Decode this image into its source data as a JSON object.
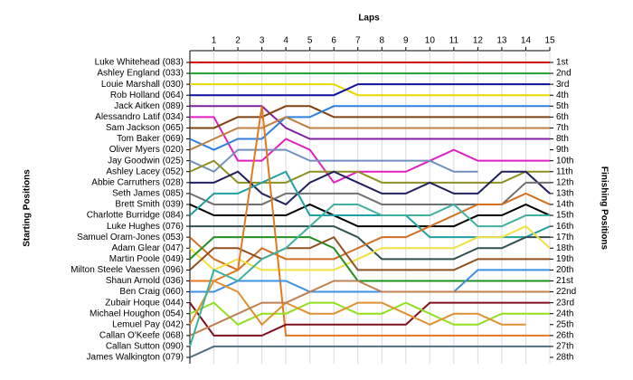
{
  "chart_data": {
    "type": "line",
    "x_title": "Laps",
    "y_title": "Starting Positions",
    "y2_title": "Finishing Positions",
    "xlim": [
      0,
      15
    ],
    "xticks": [
      1,
      2,
      3,
      4,
      5,
      6,
      7,
      8,
      9,
      10,
      11,
      12,
      13,
      14,
      15
    ],
    "ylim": [
      1,
      28
    ],
    "y_reversed": true,
    "yticks": [
      1,
      2,
      3,
      4,
      5,
      6,
      7,
      8,
      9,
      10,
      11,
      12,
      13,
      14,
      15,
      16,
      17,
      18,
      19,
      20,
      21,
      22,
      23,
      24,
      25,
      26,
      27,
      28
    ],
    "grid": true,
    "finishing_labels": [
      "1st",
      "2nd",
      "3rd",
      "4th",
      "5th",
      "6th",
      "7th",
      "8th",
      "9th",
      "10th",
      "11th",
      "12th",
      "13th",
      "14th",
      "15th",
      "16th",
      "17th",
      "18th",
      "19th",
      "20th",
      "21st",
      "22nd",
      "23rd",
      "24th",
      "25th",
      "26th",
      "27th",
      "28th"
    ],
    "series": [
      {
        "name": "Luke Whitehead (083)",
        "color": "#d00000",
        "values": [
          1,
          1,
          1,
          1,
          1,
          1,
          1,
          1,
          1,
          1,
          1,
          1,
          1,
          1,
          1,
          1
        ]
      },
      {
        "name": "Ashley England (033)",
        "color": "#20a030",
        "values": [
          2,
          2,
          2,
          2,
          2,
          2,
          2,
          2,
          2,
          2,
          2,
          2,
          2,
          2,
          2,
          2
        ]
      },
      {
        "name": "Louie Marshall (030)",
        "color": "#e8d800",
        "values": [
          3,
          3,
          3,
          3,
          3,
          3,
          3,
          4,
          4,
          4,
          4,
          4,
          4,
          4,
          4,
          4
        ]
      },
      {
        "name": "Rob Holland (064)",
        "color": "#1010a0",
        "values": [
          4,
          4,
          4,
          4,
          4,
          4,
          4,
          3,
          3,
          3,
          3,
          3,
          3,
          3,
          3,
          3
        ]
      },
      {
        "name": "Jack Aitken (089)",
        "color": "#8020a0",
        "values": [
          5,
          5,
          5,
          5,
          7,
          8,
          8,
          8,
          8,
          8,
          8,
          8,
          8,
          8,
          8,
          8
        ]
      },
      {
        "name": "Alessandro Latif (034)",
        "color": "#e020c0",
        "values": [
          6,
          6,
          10,
          10,
          8,
          9,
          12,
          11,
          11,
          11,
          10,
          9,
          10,
          10,
          10,
          10
        ]
      },
      {
        "name": "Sam Jackson (065)",
        "color": "#804010",
        "values": [
          7,
          7,
          6,
          6,
          5,
          5,
          6,
          6,
          6,
          6,
          6,
          6,
          6,
          6,
          6,
          6
        ]
      },
      {
        "name": "Tom Baker (069)",
        "color": "#3080e0",
        "values": [
          8,
          9,
          8,
          8,
          6,
          6,
          5,
          5,
          5,
          5,
          5,
          5,
          5,
          5,
          5,
          5
        ]
      },
      {
        "name": "Oliver Myers (020)",
        "color": "#c08040",
        "values": [
          9,
          8,
          7,
          7,
          6,
          7,
          7,
          7,
          7,
          7,
          7,
          7,
          7,
          7,
          7,
          7
        ]
      },
      {
        "name": "Jay Goodwin (025)",
        "color": "#7090c0",
        "values": [
          10,
          11,
          9,
          9,
          9,
          10,
          10,
          10,
          10,
          10,
          10,
          11,
          11,
          null,
          null,
          null
        ]
      },
      {
        "name": "Ashley Lacey (052)",
        "color": "#909020",
        "values": [
          11,
          10,
          12,
          12,
          12,
          11,
          11,
          11,
          12,
          12,
          12,
          12,
          12,
          12,
          11,
          11
        ]
      },
      {
        "name": "Abbie Carruthers (028)",
        "color": "#202060",
        "values": [
          12,
          12,
          11,
          13,
          14,
          12,
          11,
          12,
          13,
          13,
          12,
          13,
          13,
          11,
          11,
          13
        ]
      },
      {
        "name": "Seth James (085)",
        "color": "#707070",
        "values": [
          13,
          14,
          14,
          14,
          13,
          13,
          13,
          13,
          14,
          14,
          14,
          14,
          14,
          14,
          12,
          12
        ]
      },
      {
        "name": "Brett Smith (039)",
        "color": "#000000",
        "values": [
          14,
          15,
          15,
          15,
          15,
          14,
          15,
          16,
          16,
          16,
          16,
          16,
          15,
          15,
          14,
          15
        ]
      },
      {
        "name": "Charlotte Burridge (084)",
        "color": "#20a0a0",
        "values": [
          15,
          13,
          13,
          12,
          11,
          15,
          15,
          15,
          15,
          15,
          17,
          17,
          17,
          17,
          17,
          16
        ]
      },
      {
        "name": "Luke Hughes (076)",
        "color": "#305050",
        "values": [
          16,
          16,
          16,
          16,
          16,
          16,
          16,
          17,
          19,
          19,
          19,
          19,
          18,
          18,
          17,
          17
        ]
      },
      {
        "name": "Samuel Oram-Jones (053)",
        "color": "#d07020",
        "values": [
          17,
          19,
          20,
          18,
          19,
          19,
          19,
          18,
          17,
          17,
          16,
          15,
          14,
          14,
          13,
          14
        ]
      },
      {
        "name": "Adam Glear (047)",
        "color": "#f0e040",
        "values": [
          18,
          20,
          19,
          20,
          20,
          20,
          20,
          19,
          18,
          18,
          18,
          18,
          17,
          17,
          16,
          18
        ]
      },
      {
        "name": "Martin Poole (049)",
        "color": "#209020",
        "values": [
          19,
          17,
          17,
          17,
          17,
          17,
          18,
          21,
          21,
          21,
          21,
          21,
          21,
          21,
          21,
          21
        ]
      },
      {
        "name": "Milton Steele Vaessen (096)",
        "color": "#905020",
        "values": [
          20,
          18,
          18,
          19,
          18,
          18,
          17,
          20,
          20,
          20,
          20,
          20,
          19,
          19,
          19,
          19
        ]
      },
      {
        "name": "Shaun Arnold (036)",
        "color": "#e07a20",
        "values": [
          21,
          21,
          20,
          5,
          26,
          26,
          26,
          26,
          26,
          26,
          26,
          26,
          26,
          26,
          26,
          26
        ]
      },
      {
        "name": "Ben Craig (060)",
        "color": "#4090e0",
        "values": [
          22,
          22,
          21,
          21,
          21,
          22,
          22,
          22,
          22,
          22,
          22,
          22,
          20,
          20,
          20,
          20
        ]
      },
      {
        "name": "Zubair Hoque (044)",
        "color": "#801020",
        "values": [
          23,
          26,
          26,
          26,
          25,
          25,
          25,
          25,
          25,
          25,
          23,
          23,
          23,
          23,
          23,
          23
        ]
      },
      {
        "name": "Michael Houghon (054)",
        "color": "#90e020",
        "values": [
          24,
          23,
          25,
          24,
          24,
          23,
          23,
          24,
          24,
          23,
          24,
          25,
          25,
          24,
          24,
          24
        ]
      },
      {
        "name": "Lemuel Pay (042)",
        "color": "#e09030",
        "values": [
          25,
          21,
          22,
          25,
          23,
          24,
          24,
          23,
          23,
          24,
          25,
          24,
          24,
          25,
          25,
          null
        ]
      },
      {
        "name": "Callan O'Keefe (068)",
        "color": "#c08050",
        "values": [
          26,
          25,
          24,
          23,
          23,
          22,
          21,
          21,
          22,
          22,
          22,
          22,
          22,
          22,
          22,
          22
        ]
      },
      {
        "name": "Callan Sutton (090)",
        "color": "#40b0a0",
        "values": [
          27,
          20,
          21,
          19,
          18,
          16,
          14,
          14,
          15,
          15,
          15,
          14,
          16,
          16,
          15,
          15
        ]
      },
      {
        "name": "James Walkington (079)",
        "color": "#507080",
        "values": [
          28,
          27,
          27,
          27,
          27,
          27,
          27,
          27,
          27,
          27,
          27,
          27,
          27,
          27,
          27,
          27
        ]
      }
    ]
  }
}
